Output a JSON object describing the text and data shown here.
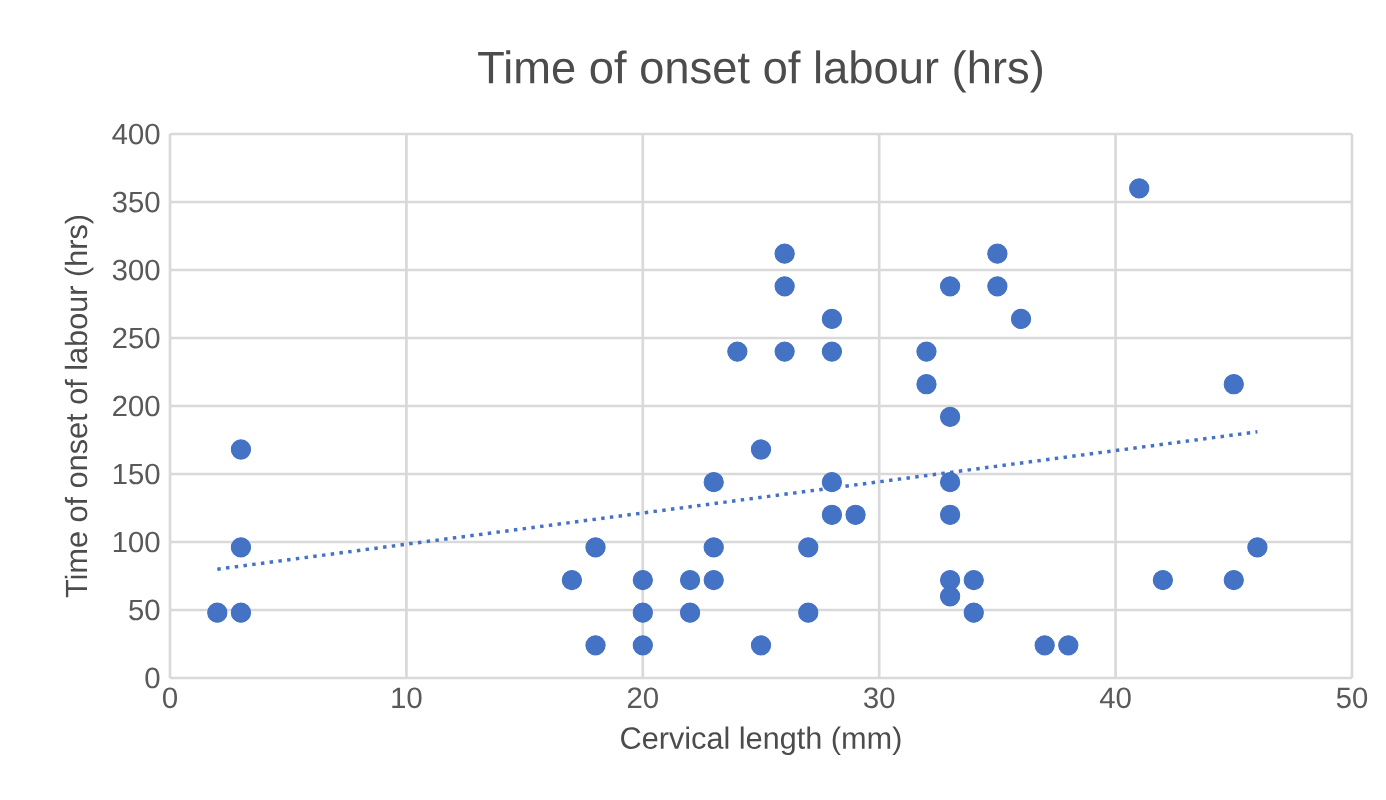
{
  "chart_data": {
    "type": "scatter",
    "title": "Time of onset of labour (hrs)",
    "xlabel": "Cervical length (mm)",
    "ylabel": "Time of onset of labour (hrs)",
    "series": [
      {
        "color": "#4472c4",
        "marker": "circle",
        "x": [
          2,
          3,
          3,
          3,
          17,
          18,
          18,
          20,
          20,
          20,
          22,
          22,
          23,
          23,
          23,
          24,
          25,
          25,
          26,
          26,
          26,
          27,
          27,
          28,
          28,
          28,
          28,
          29,
          32,
          32,
          33,
          33,
          33,
          33,
          33,
          33,
          34,
          34,
          35,
          35,
          36,
          37,
          38,
          41,
          42,
          45,
          45,
          46
        ],
        "values": [
          48,
          48,
          96,
          168,
          72,
          96,
          24,
          72,
          48,
          24,
          72,
          48,
          72,
          96,
          144,
          240,
          168,
          24,
          312,
          288,
          240,
          96,
          48,
          264,
          240,
          144,
          120,
          120,
          240,
          216,
          288,
          192,
          144,
          120,
          72,
          60,
          72,
          48,
          312,
          288,
          264,
          24,
          24,
          360,
          72,
          216,
          72,
          96
        ]
      },
      {
        "type": "line",
        "color": "#4472c4",
        "line_style": "dotted",
        "marker": "none",
        "x": [
          2,
          46
        ],
        "values": [
          80,
          181
        ]
      }
    ],
    "xlim": [
      0,
      50
    ],
    "xticks": [
      0,
      10,
      20,
      30,
      40,
      50
    ],
    "ylim": [
      0,
      400
    ],
    "yticks": [
      0,
      50,
      100,
      150,
      200,
      250,
      300,
      350,
      400
    ],
    "grid": true
  }
}
